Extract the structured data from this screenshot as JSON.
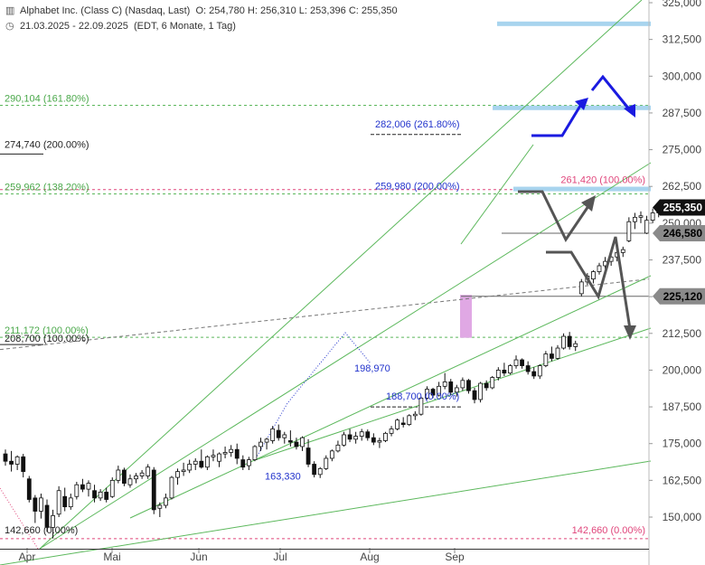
{
  "header": {
    "title": "Alphabet Inc. (Class C) (Nasdaq, Last)",
    "ohlc": "O: 254,780  H: 256,310  L: 253,396  C: 255,350",
    "range": "21.03.2025 - 22.09.2025",
    "info": "(EDT, 6 Monate, 1 Tag)",
    "chart_icon": "candlestick-icon",
    "clock_icon": "clock-icon"
  },
  "chart_data": {
    "type": "candlestick",
    "xlabel": "",
    "ylabel": "",
    "ylim": [
      142,
      325
    ],
    "x_ticks": [
      "Apr",
      "Mai",
      "Jun",
      "Jul",
      "Aug",
      "Sep"
    ],
    "y_ticks": [
      "325,000",
      "312,500",
      "300,000",
      "287,500",
      "275,000",
      "262,500",
      "250,000",
      "237,500",
      "225,000",
      "212,500",
      "200,000",
      "187,500",
      "175,000",
      "162,500",
      "150,000"
    ],
    "last_price_label": "255,350",
    "price_tags": [
      "246,580",
      "225,120"
    ],
    "levels": [
      {
        "label": "290,104 (161.80%)",
        "value": 290.104,
        "color": "#4aa84a",
        "side": "left"
      },
      {
        "label": "274,740 (200.00%)",
        "value": 274.74,
        "color": "#222222",
        "side": "left"
      },
      {
        "label": "259,962 (138.20%)",
        "value": 259.962,
        "color": "#4aa84a",
        "side": "left"
      },
      {
        "label": "211,172 (100.00%)",
        "value": 211.172,
        "color": "#4aa84a",
        "side": "left"
      },
      {
        "label": "208,700 (100.00%)",
        "value": 208.7,
        "color": "#222222",
        "side": "left"
      },
      {
        "label": "142,660 (0.00%)",
        "value": 142.66,
        "color": "#222222",
        "side": "left"
      },
      {
        "label": "282,006 (261.80%)",
        "value": 282.006,
        "color": "#2233cc",
        "side": "mid"
      },
      {
        "label": "259,980 (200.00%)",
        "value": 259.98,
        "color": "#2233cc",
        "side": "mid"
      },
      {
        "label": "261,420 (100.00%)",
        "value": 261.42,
        "color": "#e0457b",
        "side": "right"
      },
      {
        "label": "142,660 (0.00%)",
        "value": 142.66,
        "color": "#e0457b",
        "side": "right"
      },
      {
        "label": "198,970",
        "value": 198.97,
        "color": "#2233cc",
        "side": "point"
      },
      {
        "label": "188,700 (0.00%)",
        "value": 188.7,
        "color": "#2233cc",
        "side": "mid2"
      },
      {
        "label": "163,330",
        "value": 163.33,
        "color": "#2233cc",
        "side": "point2"
      }
    ],
    "candles": [
      {
        "o": 171.5,
        "h": 173.0,
        "l": 167.5,
        "c": 169.0
      },
      {
        "o": 169.0,
        "h": 172.5,
        "l": 165.5,
        "c": 168.0
      },
      {
        "o": 168.0,
        "h": 171.0,
        "l": 166.0,
        "c": 170.5
      },
      {
        "o": 170.5,
        "h": 171.5,
        "l": 163.5,
        "c": 165.5
      },
      {
        "o": 163.0,
        "h": 164.0,
        "l": 155.0,
        "c": 156.0
      },
      {
        "o": 156.5,
        "h": 157.5,
        "l": 148.0,
        "c": 152.0
      },
      {
        "o": 152.0,
        "h": 158.0,
        "l": 149.5,
        "c": 156.5
      },
      {
        "o": 154.0,
        "h": 156.0,
        "l": 145.0,
        "c": 146.5
      },
      {
        "o": 146.5,
        "h": 152.5,
        "l": 142.7,
        "c": 150.5
      },
      {
        "o": 151.0,
        "h": 160.5,
        "l": 150.0,
        "c": 159.0
      },
      {
        "o": 157.0,
        "h": 160.0,
        "l": 152.0,
        "c": 153.5
      },
      {
        "o": 153.5,
        "h": 158.0,
        "l": 152.5,
        "c": 156.5
      },
      {
        "o": 157.0,
        "h": 162.0,
        "l": 156.0,
        "c": 161.0
      },
      {
        "o": 161.0,
        "h": 163.0,
        "l": 158.5,
        "c": 159.5
      },
      {
        "o": 159.5,
        "h": 162.5,
        "l": 157.0,
        "c": 161.5
      },
      {
        "o": 159.0,
        "h": 161.0,
        "l": 155.0,
        "c": 156.5
      },
      {
        "o": 156.5,
        "h": 159.5,
        "l": 155.5,
        "c": 158.5
      },
      {
        "o": 158.5,
        "h": 160.0,
        "l": 155.0,
        "c": 156.0
      },
      {
        "o": 157.0,
        "h": 163.5,
        "l": 156.5,
        "c": 162.5
      },
      {
        "o": 162.5,
        "h": 167.5,
        "l": 161.5,
        "c": 166.0
      },
      {
        "o": 166.0,
        "h": 166.8,
        "l": 160.5,
        "c": 161.5
      },
      {
        "o": 161.0,
        "h": 164.5,
        "l": 160.0,
        "c": 163.0
      },
      {
        "o": 163.0,
        "h": 165.0,
        "l": 161.5,
        "c": 164.0
      },
      {
        "o": 164.0,
        "h": 166.0,
        "l": 163.0,
        "c": 165.0
      },
      {
        "o": 164.0,
        "h": 168.0,
        "l": 163.0,
        "c": 167.0
      },
      {
        "o": 166.0,
        "h": 167.0,
        "l": 151.0,
        "c": 152.5
      },
      {
        "o": 153.0,
        "h": 155.0,
        "l": 150.0,
        "c": 154.0
      },
      {
        "o": 154.0,
        "h": 158.0,
        "l": 153.0,
        "c": 156.5
      },
      {
        "o": 156.5,
        "h": 164.0,
        "l": 156.0,
        "c": 163.5
      },
      {
        "o": 163.5,
        "h": 166.5,
        "l": 161.0,
        "c": 165.5
      },
      {
        "o": 165.5,
        "h": 168.5,
        "l": 164.0,
        "c": 166.0
      },
      {
        "o": 166.0,
        "h": 169.5,
        "l": 165.0,
        "c": 168.0
      },
      {
        "o": 168.0,
        "h": 170.0,
        "l": 166.0,
        "c": 169.0
      },
      {
        "o": 169.0,
        "h": 173.0,
        "l": 166.5,
        "c": 167.0
      },
      {
        "o": 167.0,
        "h": 171.0,
        "l": 166.0,
        "c": 170.5
      },
      {
        "o": 170.5,
        "h": 173.0,
        "l": 169.0,
        "c": 171.0
      },
      {
        "o": 169.0,
        "h": 172.0,
        "l": 167.0,
        "c": 171.5
      },
      {
        "o": 171.5,
        "h": 174.0,
        "l": 170.0,
        "c": 172.0
      },
      {
        "o": 172.0,
        "h": 174.5,
        "l": 170.5,
        "c": 173.0
      },
      {
        "o": 173.0,
        "h": 175.0,
        "l": 168.0,
        "c": 170.0
      },
      {
        "o": 169.5,
        "h": 171.0,
        "l": 166.0,
        "c": 167.0
      },
      {
        "o": 167.5,
        "h": 170.5,
        "l": 166.0,
        "c": 169.5
      },
      {
        "o": 169.5,
        "h": 174.5,
        "l": 169.0,
        "c": 174.0
      },
      {
        "o": 174.0,
        "h": 177.0,
        "l": 172.5,
        "c": 175.5
      },
      {
        "o": 175.5,
        "h": 177.0,
        "l": 173.0,
        "c": 176.5
      },
      {
        "o": 176.0,
        "h": 181.0,
        "l": 175.0,
        "c": 180.0
      },
      {
        "o": 179.5,
        "h": 181.5,
        "l": 176.0,
        "c": 177.0
      },
      {
        "o": 177.0,
        "h": 179.0,
        "l": 175.0,
        "c": 178.0
      },
      {
        "o": 176.0,
        "h": 179.5,
        "l": 174.0,
        "c": 175.5
      },
      {
        "o": 175.5,
        "h": 177.0,
        "l": 173.0,
        "c": 174.0
      },
      {
        "o": 174.0,
        "h": 177.5,
        "l": 172.5,
        "c": 177.0
      },
      {
        "o": 173.5,
        "h": 176.5,
        "l": 167.0,
        "c": 168.0
      },
      {
        "o": 168.0,
        "h": 169.0,
        "l": 163.5,
        "c": 164.5
      },
      {
        "o": 164.5,
        "h": 167.0,
        "l": 163.3,
        "c": 166.5
      },
      {
        "o": 166.5,
        "h": 171.0,
        "l": 166.0,
        "c": 170.0
      },
      {
        "o": 170.0,
        "h": 173.0,
        "l": 169.0,
        "c": 172.5
      },
      {
        "o": 172.5,
        "h": 176.0,
        "l": 172.0,
        "c": 174.5
      },
      {
        "o": 174.5,
        "h": 179.0,
        "l": 174.0,
        "c": 178.0
      },
      {
        "o": 178.0,
        "h": 180.0,
        "l": 175.5,
        "c": 176.5
      },
      {
        "o": 176.5,
        "h": 179.0,
        "l": 175.0,
        "c": 177.5
      },
      {
        "o": 177.5,
        "h": 180.0,
        "l": 176.0,
        "c": 179.0
      },
      {
        "o": 179.0,
        "h": 179.8,
        "l": 176.0,
        "c": 177.0
      },
      {
        "o": 177.0,
        "h": 178.5,
        "l": 174.5,
        "c": 175.5
      },
      {
        "o": 175.5,
        "h": 177.0,
        "l": 173.5,
        "c": 176.0
      },
      {
        "o": 176.0,
        "h": 179.0,
        "l": 175.5,
        "c": 178.5
      },
      {
        "o": 178.5,
        "h": 181.0,
        "l": 177.5,
        "c": 180.0
      },
      {
        "o": 180.0,
        "h": 183.5,
        "l": 179.5,
        "c": 183.0
      },
      {
        "o": 182.0,
        "h": 184.0,
        "l": 180.5,
        "c": 181.5
      },
      {
        "o": 181.5,
        "h": 185.0,
        "l": 181.0,
        "c": 184.5
      },
      {
        "o": 184.5,
        "h": 186.0,
        "l": 183.0,
        "c": 185.0
      },
      {
        "o": 185.0,
        "h": 191.0,
        "l": 184.5,
        "c": 190.5
      },
      {
        "o": 190.5,
        "h": 194.5,
        "l": 190.0,
        "c": 193.5
      },
      {
        "o": 193.5,
        "h": 194.0,
        "l": 190.5,
        "c": 191.5
      },
      {
        "o": 191.5,
        "h": 196.0,
        "l": 191.0,
        "c": 194.5
      },
      {
        "o": 194.5,
        "h": 199.0,
        "l": 193.5,
        "c": 196.0
      },
      {
        "o": 196.0,
        "h": 197.0,
        "l": 191.5,
        "c": 192.5
      },
      {
        "o": 192.5,
        "h": 195.0,
        "l": 191.0,
        "c": 194.0
      },
      {
        "o": 194.0,
        "h": 197.5,
        "l": 193.0,
        "c": 196.5
      },
      {
        "o": 196.5,
        "h": 197.0,
        "l": 192.0,
        "c": 193.0
      },
      {
        "o": 193.0,
        "h": 194.0,
        "l": 188.7,
        "c": 190.0
      },
      {
        "o": 190.0,
        "h": 196.0,
        "l": 189.0,
        "c": 195.5
      },
      {
        "o": 195.5,
        "h": 196.5,
        "l": 193.0,
        "c": 194.0
      },
      {
        "o": 194.0,
        "h": 198.0,
        "l": 193.5,
        "c": 197.5
      },
      {
        "o": 197.5,
        "h": 201.0,
        "l": 196.5,
        "c": 200.0
      },
      {
        "o": 200.0,
        "h": 202.5,
        "l": 198.0,
        "c": 199.0
      },
      {
        "o": 199.0,
        "h": 202.0,
        "l": 198.5,
        "c": 201.5
      },
      {
        "o": 201.5,
        "h": 205.0,
        "l": 200.5,
        "c": 203.5
      },
      {
        "o": 203.5,
        "h": 204.0,
        "l": 200.5,
        "c": 201.5
      },
      {
        "o": 201.5,
        "h": 203.0,
        "l": 198.5,
        "c": 199.5
      },
      {
        "o": 199.5,
        "h": 201.0,
        "l": 197.0,
        "c": 198.0
      },
      {
        "o": 198.0,
        "h": 202.0,
        "l": 197.0,
        "c": 201.5
      },
      {
        "o": 201.5,
        "h": 206.5,
        "l": 201.0,
        "c": 205.5
      },
      {
        "o": 205.5,
        "h": 208.0,
        "l": 203.0,
        "c": 204.0
      },
      {
        "o": 204.0,
        "h": 208.5,
        "l": 203.5,
        "c": 207.5
      },
      {
        "o": 207.5,
        "h": 212.5,
        "l": 207.0,
        "c": 211.5
      },
      {
        "o": 211.5,
        "h": 213.0,
        "l": 207.0,
        "c": 208.0
      },
      {
        "o": 208.0,
        "h": 210.0,
        "l": 206.5,
        "c": 209.0
      },
      {
        "o": 226.0,
        "h": 231.0,
        "l": 225.1,
        "c": 230.0
      },
      {
        "o": 230.0,
        "h": 233.0,
        "l": 229.0,
        "c": 232.0
      },
      {
        "o": 231.0,
        "h": 234.0,
        "l": 229.5,
        "c": 233.5
      },
      {
        "o": 233.5,
        "h": 236.5,
        "l": 232.5,
        "c": 235.5
      },
      {
        "o": 235.5,
        "h": 238.5,
        "l": 234.5,
        "c": 237.0
      },
      {
        "o": 237.0,
        "h": 240.0,
        "l": 235.5,
        "c": 238.5
      },
      {
        "o": 238.5,
        "h": 241.0,
        "l": 237.0,
        "c": 240.0
      },
      {
        "o": 240.0,
        "h": 242.0,
        "l": 238.5,
        "c": 241.0
      },
      {
        "o": 244.0,
        "h": 252.0,
        "l": 243.5,
        "c": 250.5
      },
      {
        "o": 250.5,
        "h": 253.5,
        "l": 248.0,
        "c": 252.0
      },
      {
        "o": 252.0,
        "h": 254.0,
        "l": 250.0,
        "c": 252.5
      },
      {
        "o": 246.6,
        "h": 252.5,
        "l": 246.3,
        "c": 251.0
      },
      {
        "o": 251.0,
        "h": 255.0,
        "l": 250.0,
        "c": 253.5
      },
      {
        "o": 253.5,
        "h": 256.0,
        "l": 252.0,
        "c": 254.8
      },
      {
        "o": 254.78,
        "h": 256.31,
        "l": 253.396,
        "c": 255.35
      }
    ]
  }
}
